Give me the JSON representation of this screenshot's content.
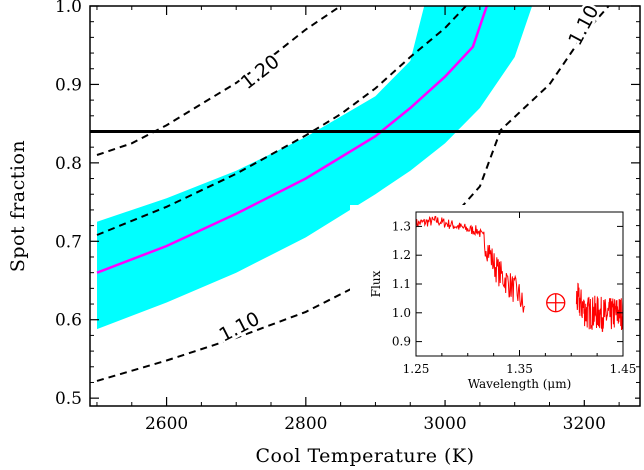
{
  "chart_data": [
    {
      "type": "line",
      "title": "",
      "xlabel": "Cool Temperature (K)",
      "ylabel": "Spot fraction",
      "xlim": [
        2490,
        3280
      ],
      "ylim": [
        0.49,
        1.0
      ],
      "xticks": [
        2600,
        2800,
        3000,
        3200
      ],
      "xtick_labels": [
        "2600",
        "2800",
        "3000",
        "3200"
      ],
      "yticks": [
        0.5,
        0.6,
        0.7,
        0.8,
        0.9,
        1.0
      ],
      "ytick_labels": [
        "0.5",
        "0.6",
        "0.7",
        "0.8",
        "0.9",
        "1.0"
      ],
      "grid": false,
      "band": {
        "color": "#00ffff",
        "upper": [
          [
            2500,
            0.725
          ],
          [
            2600,
            0.755
          ],
          [
            2700,
            0.79
          ],
          [
            2800,
            0.833
          ],
          [
            2900,
            0.885
          ],
          [
            2950,
            0.93
          ],
          [
            2970,
            1.0
          ],
          [
            3125,
            1.0
          ]
        ],
        "lower": [
          [
            2500,
            0.588
          ],
          [
            2600,
            0.622
          ],
          [
            2700,
            0.66
          ],
          [
            2800,
            0.705
          ],
          [
            2900,
            0.76
          ],
          [
            2950,
            0.79
          ],
          [
            3000,
            0.825
          ],
          [
            3050,
            0.87
          ],
          [
            3100,
            0.935
          ],
          [
            3125,
            1.0
          ]
        ]
      },
      "series": [
        {
          "color": "#ff00ff",
          "style": "solid",
          "points": [
            [
              2500,
              0.66
            ],
            [
              2600,
              0.694
            ],
            [
              2700,
              0.735
            ],
            [
              2800,
              0.78
            ],
            [
              2900,
              0.834
            ],
            [
              2950,
              0.87
            ],
            [
              3000,
              0.91
            ],
            [
              3040,
              0.948
            ],
            [
              3060,
              1.0
            ]
          ]
        }
      ],
      "contours": [
        {
          "style": "dashed",
          "label": "1.20",
          "points": [
            [
              2500,
              0.81
            ],
            [
              2550,
              0.825
            ],
            [
              2600,
              0.848
            ],
            [
              2650,
              0.875
            ],
            [
              2700,
              0.902
            ],
            [
              2750,
              0.935
            ],
            [
              2800,
              0.97
            ],
            [
              2850,
              1.0
            ]
          ]
        },
        {
          "style": "dashed",
          "points": [
            [
              2500,
              0.708
            ],
            [
              2600,
              0.744
            ],
            [
              2700,
              0.786
            ],
            [
              2800,
              0.835
            ],
            [
              2850,
              0.862
            ],
            [
              2900,
              0.895
            ],
            [
              2950,
              0.935
            ],
            [
              3000,
              0.972
            ],
            [
              3030,
              1.0
            ]
          ]
        },
        {
          "style": "dashed",
          "label": "1.10",
          "points": [
            [
              2500,
              0.522
            ],
            [
              2600,
              0.548
            ],
            [
              2700,
              0.577
            ],
            [
              2800,
              0.61
            ],
            [
              2900,
              0.655
            ],
            [
              2950,
              0.683
            ],
            [
              3000,
              0.72
            ],
            [
              3050,
              0.77
            ],
            [
              3080,
              0.842
            ],
            [
              3150,
              0.9
            ],
            [
              3200,
              0.965
            ],
            [
              3235,
              1.0
            ]
          ]
        }
      ],
      "contour_label_positions": [
        {
          "text": "1.20",
          "x": 2735,
          "y": 0.915,
          "angle": -38
        },
        {
          "text": "1.10",
          "x": 2705,
          "y": 0.59,
          "angle": -27
        },
        {
          "text": "1.10",
          "x": 3200,
          "y": 0.975,
          "angle": -62
        }
      ],
      "hline": {
        "y": 0.84,
        "color": "#000000"
      }
    },
    {
      "type": "line",
      "title": "",
      "xlabel": "Wavelength (μm)",
      "ylabel": "Flux",
      "xlim": [
        1.25,
        1.45
      ],
      "ylim": [
        0.85,
        1.35
      ],
      "xticks": [
        1.25,
        1.35,
        1.45
      ],
      "xtick_labels": [
        "1.25",
        "1.35",
        "1.45"
      ],
      "yticks": [
        0.9,
        1.0,
        1.1,
        1.2,
        1.3
      ],
      "ytick_labels": [
        "0.9",
        "1.0",
        "1.1",
        "1.2",
        "1.3"
      ],
      "series": [
        {
          "color": "#ff0000",
          "segments": [
            [
              [
                1.25,
                1.31
              ],
              [
                1.27,
                1.32
              ],
              [
                1.29,
                1.3
              ],
              [
                1.3,
                1.29
              ],
              [
                1.31,
                1.285
              ],
              [
                1.315,
                1.26
              ],
              [
                1.32,
                1.22
              ],
              [
                1.325,
                1.17
              ],
              [
                1.33,
                1.14
              ],
              [
                1.34,
                1.1
              ],
              [
                1.35,
                1.06
              ],
              [
                1.355,
                1.0
              ]
            ],
            [
              [
                1.405,
                1.05
              ],
              [
                1.415,
                1.0
              ],
              [
                1.425,
                1.0
              ],
              [
                1.435,
                0.99
              ],
              [
                1.445,
                1.0
              ],
              [
                1.45,
                1.0
              ]
            ]
          ]
        }
      ],
      "annotation": {
        "symbol": "⊕",
        "x": 1.385,
        "y": 1.035,
        "color": "#ff0000"
      }
    }
  ]
}
